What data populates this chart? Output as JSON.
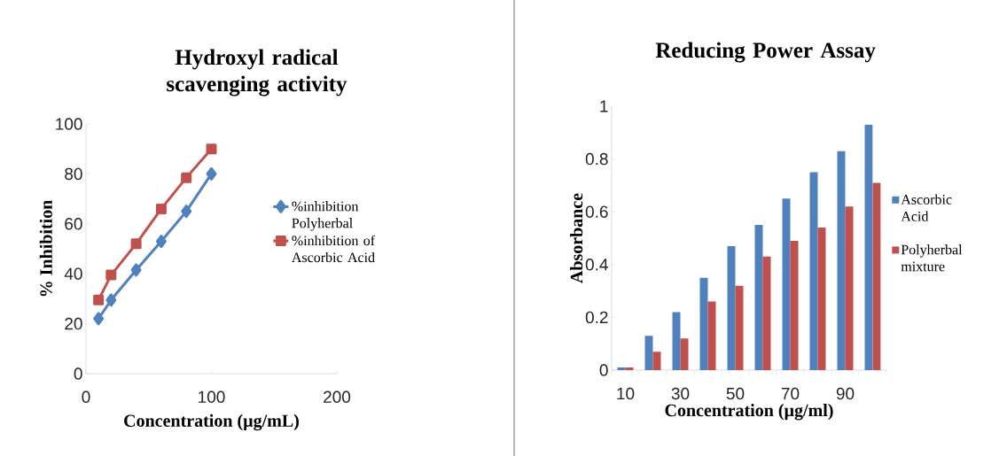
{
  "chart_data": [
    {
      "type": "line",
      "title": "Hydroxyl radical scavenging activity",
      "xlabel": "Concentration (µg/mL)",
      "ylabel": "% Inhibition",
      "x": [
        10,
        20,
        40,
        60,
        80,
        100
      ],
      "series": [
        {
          "name": "%inhibition Polyherbal",
          "color": "#4f81bd",
          "marker": "diamond",
          "values": [
            22,
            29.5,
            41.5,
            53,
            65,
            80
          ]
        },
        {
          "name": "%inhibition of Ascorbic Acid",
          "color": "#c0504d",
          "marker": "square",
          "values": [
            29.5,
            39.5,
            52,
            66,
            78.5,
            90
          ]
        }
      ],
      "xlim": [
        0,
        200
      ],
      "xticks": [
        0,
        100,
        200
      ],
      "ylim": [
        0,
        100
      ],
      "yticks": [
        0,
        20,
        40,
        60,
        80,
        100
      ],
      "legend": "right"
    },
    {
      "type": "bar",
      "title": "Reducing Power Assay",
      "xlabel": "Concentration (µg/ml)",
      "ylabel": "Absorbance",
      "categories": [
        "10",
        null,
        "30",
        null,
        "50",
        null,
        "70",
        null,
        "90",
        null
      ],
      "series": [
        {
          "name": "Ascorbic Acid",
          "color": "#4f81bd",
          "values": [
            0.01,
            0.13,
            0.22,
            0.35,
            0.47,
            0.55,
            0.65,
            0.75,
            0.83,
            0.93
          ]
        },
        {
          "name": "Polyherbal mixture",
          "color": "#c0504d",
          "values": [
            0.01,
            0.07,
            0.12,
            0.26,
            0.32,
            0.43,
            0.49,
            0.54,
            0.62,
            0.71
          ]
        }
      ],
      "ylim": [
        0,
        1
      ],
      "yticks": [
        0,
        0.2,
        0.4,
        0.6,
        0.8,
        1
      ],
      "legend": "right"
    }
  ]
}
